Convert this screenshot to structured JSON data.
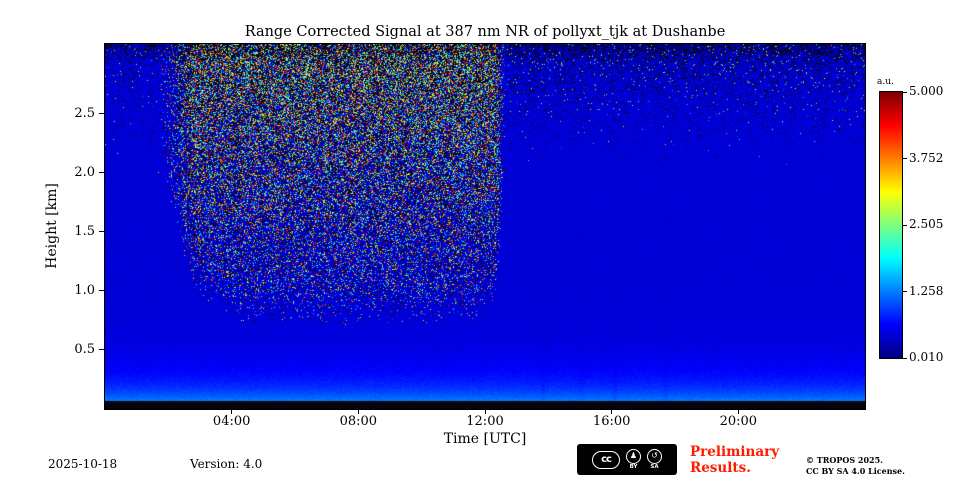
{
  "chart_data": {
    "type": "heatmap",
    "title": "Range Corrected Signal at 387 nm NR of pollyxt_tjk at Dushanbe",
    "xlabel": "Time [UTC]",
    "ylabel": "Height [km]",
    "x_ticks": [
      "04:00",
      "08:00",
      "12:00",
      "16:00",
      "20:00"
    ],
    "x_tick_hours": [
      4,
      8,
      12,
      16,
      20
    ],
    "x_range_hours": [
      0,
      24
    ],
    "y_ticks": [
      "0.5",
      "1.0",
      "1.5",
      "2.0",
      "2.5"
    ],
    "y_tick_km": [
      0.5,
      1.0,
      1.5,
      2.0,
      2.5
    ],
    "y_range_km": [
      0,
      3.09
    ],
    "grid": false,
    "colorbar": {
      "label": "a.u.",
      "ticks": [
        "5.000",
        "3.752",
        "2.505",
        "1.258",
        "0.010"
      ],
      "values": [
        5.0,
        3.752,
        2.505,
        1.258,
        0.01
      ],
      "colormap": "jet"
    },
    "regions": [
      {
        "name": "daytime-background-noise",
        "start_hour": 1.7,
        "end_hour": 12.65,
        "min_height_km": 0.7,
        "description": "dense multicolour speckle noise (black/cyan/green/yellow, sparse red) from daylight background, densest aloft, tapering down to ~0.7 km near midday"
      },
      {
        "name": "upper-sparse-noise",
        "start_hour": 12.65,
        "end_hour": 24,
        "min_height_km": 1.9,
        "description": "sparse dark speckles near the plot top after the daytime period"
      },
      {
        "name": "near-ground-enhanced-signal",
        "max_height_km": 0.3,
        "description": "brighter cyan-blue band of stronger range-corrected signal just above the ground"
      },
      {
        "name": "blind-zone",
        "max_height_km": 0.065,
        "description": "black band at the lowest range bins"
      }
    ],
    "background_signal_au": 0.45
  },
  "footer": {
    "date": "2025-10-18",
    "version": "Version: 4.0",
    "preliminary_line1": "Preliminary",
    "preliminary_line2": "Results.",
    "copyright_line1": "© TROPOS 2025.",
    "copyright_line2": "CC BY SA 4.0 License.",
    "cc_badge": {
      "logo": "cc",
      "by": "BY",
      "sa": "SA"
    }
  },
  "colors": {
    "preliminary_red": "#ff1a00",
    "frame": "#000000",
    "background": "#ffffff"
  }
}
